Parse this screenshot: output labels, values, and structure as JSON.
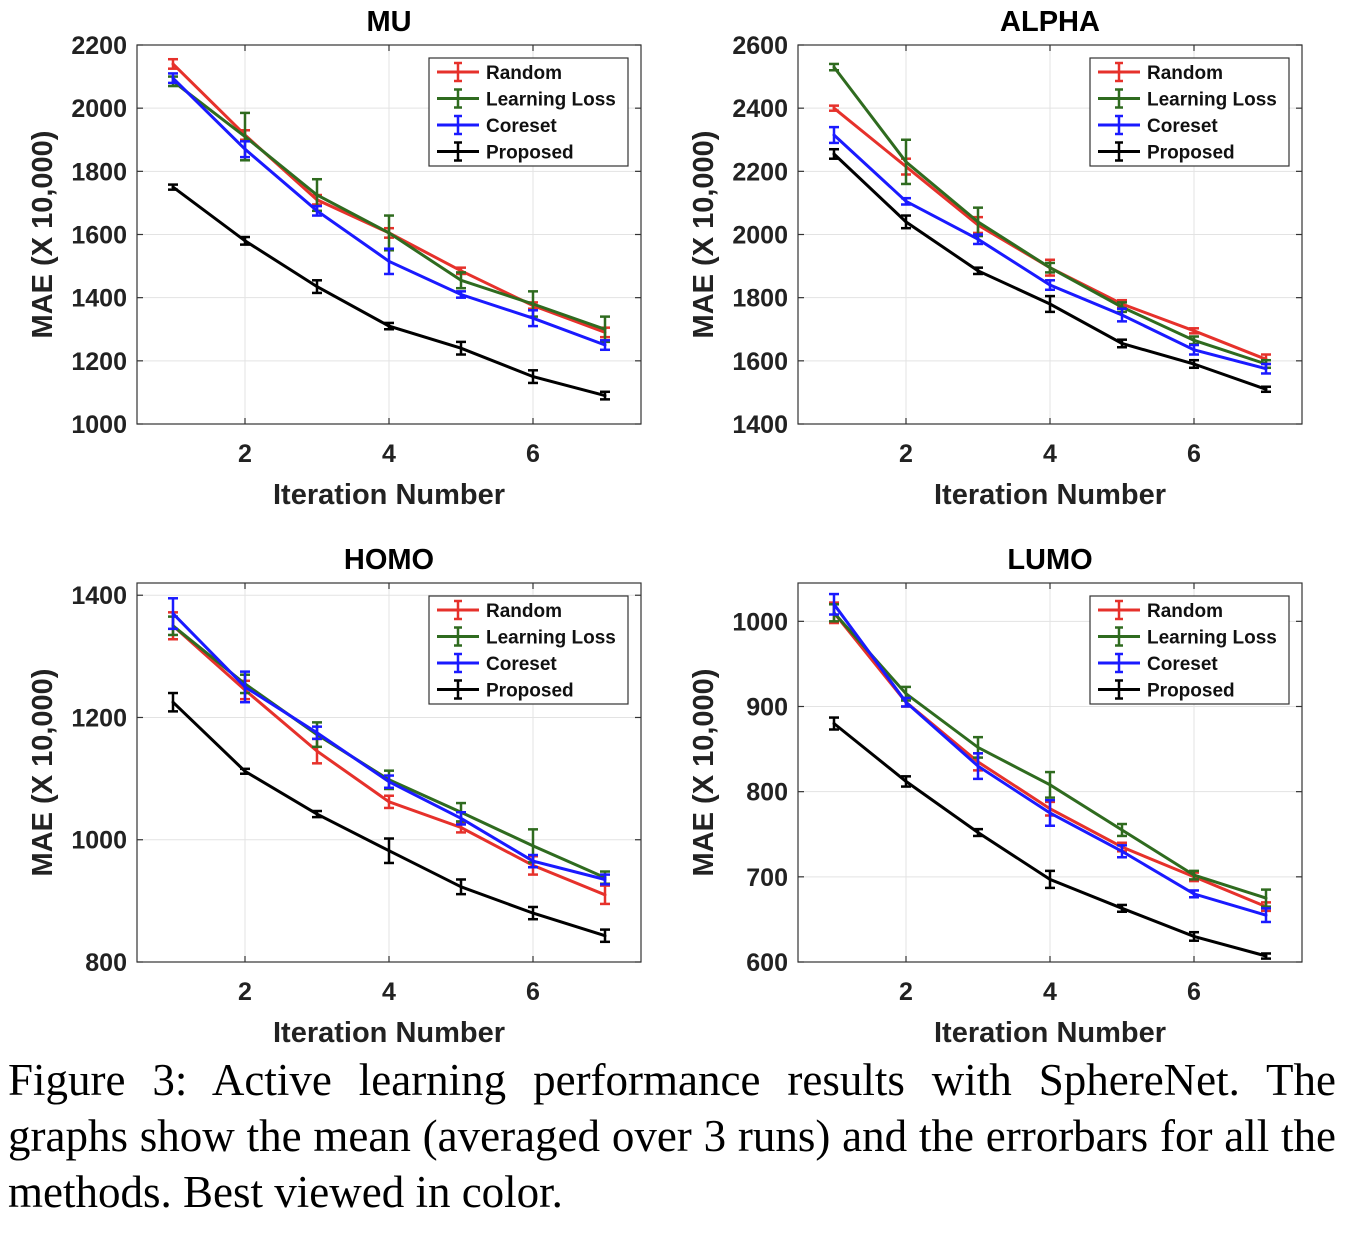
{
  "figure": {
    "caption": "Figure 3: Active learning performance results with SphereNet. The graphs show the mean (averaged over 3 runs) and the errorbars for all the methods. Best viewed in color."
  },
  "legend": {
    "entries": [
      {
        "name": "Random",
        "color": "#e6312b"
      },
      {
        "name": "Learning Loss",
        "color": "#2f6b1f"
      },
      {
        "name": "Coreset",
        "color": "#1a1aff"
      },
      {
        "name": "Proposed",
        "color": "#000000"
      }
    ],
    "placement": "top-right"
  },
  "chart_data": [
    {
      "type": "line",
      "title": "MU",
      "xlabel": "Iteration Number",
      "ylabel": "MAE (X 10,000)",
      "xlim": [
        0.5,
        7.5
      ],
      "ylim": [
        1000,
        2200
      ],
      "xticks": [
        2,
        4,
        6
      ],
      "yticks": [
        1000,
        1200,
        1400,
        1600,
        1800,
        2000,
        2200
      ],
      "grid": true,
      "x": [
        1,
        2,
        3,
        4,
        5,
        6,
        7
      ],
      "series": [
        {
          "name": "Random",
          "values": [
            2140,
            1915,
            1710,
            1605,
            1485,
            1375,
            1290
          ],
          "errors": [
            15,
            15,
            15,
            15,
            10,
            10,
            15
          ]
        },
        {
          "name": "Learning Loss",
          "values": [
            2085,
            1910,
            1725,
            1605,
            1455,
            1380,
            1300
          ],
          "errors": [
            15,
            75,
            50,
            55,
            25,
            40,
            40
          ]
        },
        {
          "name": "Coreset",
          "values": [
            2095,
            1870,
            1675,
            1515,
            1410,
            1335,
            1250
          ],
          "errors": [
            15,
            25,
            15,
            40,
            10,
            25,
            15
          ]
        },
        {
          "name": "Proposed",
          "values": [
            1750,
            1580,
            1435,
            1310,
            1240,
            1150,
            1090
          ],
          "errors": [
            8,
            12,
            20,
            10,
            20,
            20,
            12
          ]
        }
      ]
    },
    {
      "type": "line",
      "title": "ALPHA",
      "xlabel": "Iteration Number",
      "ylabel": "MAE (X 10,000)",
      "xlim": [
        0.5,
        7.5
      ],
      "ylim": [
        1400,
        2600
      ],
      "xticks": [
        2,
        4,
        6
      ],
      "yticks": [
        1400,
        1600,
        1800,
        2000,
        2200,
        2400,
        2600
      ],
      "grid": true,
      "x": [
        1,
        2,
        3,
        4,
        5,
        6,
        7
      ],
      "series": [
        {
          "name": "Random",
          "values": [
            2400,
            2215,
            2030,
            1895,
            1780,
            1695,
            1605
          ],
          "errors": [
            8,
            25,
            25,
            25,
            12,
            8,
            15
          ]
        },
        {
          "name": "Learning Loss",
          "values": [
            2530,
            2230,
            2040,
            1895,
            1770,
            1665,
            1590
          ],
          "errors": [
            10,
            70,
            45,
            15,
            15,
            12,
            12
          ]
        },
        {
          "name": "Coreset",
          "values": [
            2315,
            2105,
            1985,
            1840,
            1745,
            1635,
            1575
          ],
          "errors": [
            25,
            10,
            15,
            15,
            20,
            15,
            15
          ]
        },
        {
          "name": "Proposed",
          "values": [
            2255,
            2040,
            1885,
            1780,
            1655,
            1590,
            1510
          ],
          "errors": [
            15,
            20,
            10,
            25,
            12,
            12,
            8
          ]
        }
      ]
    },
    {
      "type": "line",
      "title": "HOMO",
      "xlabel": "Iteration Number",
      "ylabel": "MAE (X 10,000)",
      "xlim": [
        0.5,
        7.5
      ],
      "ylim": [
        800,
        1420
      ],
      "xticks": [
        2,
        4,
        6
      ],
      "yticks": [
        800,
        1000,
        1200,
        1400
      ],
      "grid": true,
      "x": [
        1,
        2,
        3,
        4,
        5,
        6,
        7
      ],
      "series": [
        {
          "name": "Random",
          "values": [
            1350,
            1245,
            1145,
            1062,
            1020,
            958,
            910
          ],
          "errors": [
            22,
            15,
            20,
            10,
            8,
            15,
            15
          ]
        },
        {
          "name": "Learning Loss",
          "values": [
            1350,
            1255,
            1172,
            1098,
            1045,
            990,
            938
          ],
          "errors": [
            15,
            15,
            20,
            15,
            15,
            27,
            10
          ]
        },
        {
          "name": "Coreset",
          "values": [
            1370,
            1250,
            1175,
            1095,
            1035,
            965,
            935
          ],
          "errors": [
            25,
            25,
            10,
            10,
            10,
            10,
            8
          ]
        },
        {
          "name": "Proposed",
          "values": [
            1225,
            1112,
            1042,
            982,
            923,
            880,
            843
          ],
          "errors": [
            15,
            4,
            5,
            20,
            12,
            10,
            10
          ]
        }
      ]
    },
    {
      "type": "line",
      "title": "LUMO",
      "xlabel": "Iteration Number",
      "ylabel": "MAE (X 10,000)",
      "xlim": [
        0.5,
        7.5
      ],
      "ylim": [
        600,
        1045
      ],
      "xticks": [
        2,
        4,
        6
      ],
      "yticks": [
        600,
        700,
        800,
        900,
        1000
      ],
      "grid": true,
      "x": [
        1,
        2,
        3,
        4,
        5,
        6,
        7
      ],
      "series": [
        {
          "name": "Random",
          "values": [
            1010,
            905,
            835,
            780,
            735,
            700,
            665
          ],
          "errors": [
            12,
            5,
            10,
            8,
            5,
            5,
            5
          ]
        },
        {
          "name": "Learning Loss",
          "values": [
            1010,
            915,
            852,
            808,
            755,
            702,
            675
          ],
          "errors": [
            10,
            8,
            12,
            15,
            7,
            5,
            10
          ]
        },
        {
          "name": "Coreset",
          "values": [
            1020,
            905,
            830,
            775,
            730,
            680,
            655
          ],
          "errors": [
            12,
            5,
            15,
            15,
            7,
            4,
            8
          ]
        },
        {
          "name": "Proposed",
          "values": [
            880,
            812,
            752,
            697,
            663,
            630,
            607
          ],
          "errors": [
            7,
            6,
            4,
            10,
            4,
            5,
            3
          ]
        }
      ]
    }
  ]
}
